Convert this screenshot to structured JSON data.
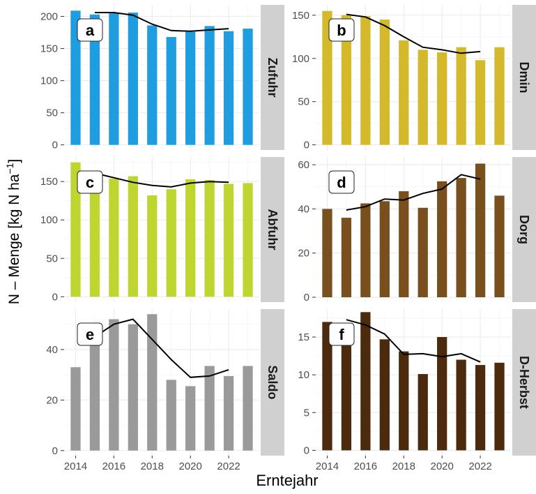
{
  "figure": {
    "ylabel_main": "N – Menge [kg N ha",
    "ylabel_sup": "−1",
    "ylabel_close": "]",
    "xlabel": "Erntejahr"
  },
  "colors": {
    "panel_bg": "#ffffff",
    "grid": "#ebebeb",
    "strip_bg": "#d0d0d0",
    "line": "#000000",
    "tick_text": "#4d4d4d"
  },
  "chart_data": [
    {
      "type": "bar",
      "letter": "a",
      "strip_label": "Zufuhr",
      "bar_color": "#1f9de1",
      "x": [
        2014,
        2015,
        2016,
        2017,
        2018,
        2019,
        2020,
        2021,
        2022,
        2023
      ],
      "values": [
        209,
        203,
        206,
        206,
        186,
        168,
        176,
        185,
        177,
        181
      ],
      "trend_x": [
        2015,
        2016,
        2017,
        2018,
        2019,
        2020,
        2021,
        2022
      ],
      "trend": [
        206,
        206,
        202,
        188,
        178,
        177,
        179,
        181
      ],
      "ylim": [
        -8,
        218
      ],
      "yticks": [
        0,
        50,
        100,
        150,
        200
      ],
      "xticks": [
        2014,
        2016,
        2018,
        2020,
        2022
      ],
      "grid": true
    },
    {
      "type": "bar",
      "letter": "b",
      "strip_label": "Dmin",
      "bar_color": "#d3b92b",
      "x": [
        2014,
        2015,
        2016,
        2017,
        2018,
        2019,
        2020,
        2021,
        2022,
        2023
      ],
      "values": [
        155,
        150,
        149,
        145,
        121,
        110,
        107,
        113,
        98,
        113
      ],
      "trend_x": [
        2015,
        2016,
        2017,
        2018,
        2019,
        2020,
        2021,
        2022
      ],
      "trend": [
        151,
        148,
        138,
        125,
        113,
        110,
        106,
        108
      ],
      "ylim": [
        -6,
        162
      ],
      "yticks": [
        0,
        50,
        100,
        150
      ],
      "xticks": [
        2014,
        2016,
        2018,
        2020,
        2022
      ],
      "grid": true
    },
    {
      "type": "bar",
      "letter": "c",
      "strip_label": "Abfuhr",
      "bar_color": "#bfd530",
      "x": [
        2014,
        2015,
        2016,
        2017,
        2018,
        2019,
        2020,
        2021,
        2022,
        2023
      ],
      "values": [
        175,
        137,
        154,
        157,
        132,
        140,
        153,
        152,
        147,
        148
      ],
      "trend_x": [
        2015,
        2016,
        2017,
        2018,
        2019,
        2020,
        2021,
        2022
      ],
      "trend": [
        161,
        155,
        149,
        145,
        143,
        148,
        150,
        149
      ],
      "ylim": [
        -7,
        182
      ],
      "yticks": [
        0,
        50,
        100,
        150
      ],
      "xticks": [
        2014,
        2016,
        2018,
        2020,
        2022
      ],
      "grid": true
    },
    {
      "type": "bar",
      "letter": "d",
      "strip_label": "Dorg",
      "bar_color": "#7a4f1e",
      "x": [
        2014,
        2015,
        2016,
        2017,
        2018,
        2019,
        2020,
        2021,
        2022,
        2023
      ],
      "values": [
        40,
        36,
        42.5,
        43.5,
        48,
        40.5,
        52.5,
        54,
        60.5,
        46
      ],
      "trend_x": [
        2015,
        2016,
        2017,
        2018,
        2019,
        2020,
        2021,
        2022
      ],
      "trend": [
        39.5,
        41,
        44.5,
        44,
        47,
        49,
        55.5,
        53.5
      ],
      "ylim": [
        -2.2,
        63.5
      ],
      "yticks": [
        0,
        20,
        40,
        60
      ],
      "xticks": [
        2014,
        2016,
        2018,
        2020,
        2022
      ],
      "grid": true
    },
    {
      "type": "bar",
      "letter": "e",
      "strip_label": "Saldo",
      "bar_color": "#9a9a9a",
      "x": [
        2014,
        2015,
        2016,
        2017,
        2018,
        2019,
        2020,
        2021,
        2022,
        2023
      ],
      "values": [
        33,
        44,
        52,
        50,
        54,
        28,
        25.5,
        33.5,
        29.5,
        33.5
      ],
      "trend_x": [
        2015,
        2016,
        2017,
        2018,
        2019,
        2020,
        2021,
        2022
      ],
      "trend": [
        45,
        50,
        52,
        44,
        36,
        29,
        29.5,
        32
      ],
      "ylim": [
        -2,
        56
      ],
      "yticks": [
        0,
        20,
        40
      ],
      "xticks": [
        2014,
        2016,
        2018,
        2020,
        2022
      ],
      "xticklabels": [
        "2014",
        "2016",
        "2018",
        "2020",
        "2022"
      ],
      "grid": true
    },
    {
      "type": "bar",
      "letter": "f",
      "strip_label": "D-Herbst",
      "bar_color": "#4b2a0e",
      "x": [
        2014,
        2015,
        2016,
        2017,
        2018,
        2019,
        2020,
        2021,
        2022,
        2023
      ],
      "values": [
        17,
        16.8,
        18.3,
        14.7,
        13.1,
        10.1,
        15,
        12,
        11.3,
        11.6
      ],
      "trend_x": [
        2015,
        2016,
        2017,
        2018,
        2019,
        2020,
        2021,
        2022
      ],
      "trend": [
        17.3,
        16.6,
        15.4,
        12.7,
        12.8,
        12.4,
        12.8,
        11.7
      ],
      "ylim": [
        -0.7,
        18.7
      ],
      "yticks": [
        0,
        5,
        10,
        15
      ],
      "xticks": [
        2014,
        2016,
        2018,
        2020,
        2022
      ],
      "xticklabels": [
        "2014",
        "2016",
        "2018",
        "2020",
        "2022"
      ],
      "grid": true
    }
  ]
}
